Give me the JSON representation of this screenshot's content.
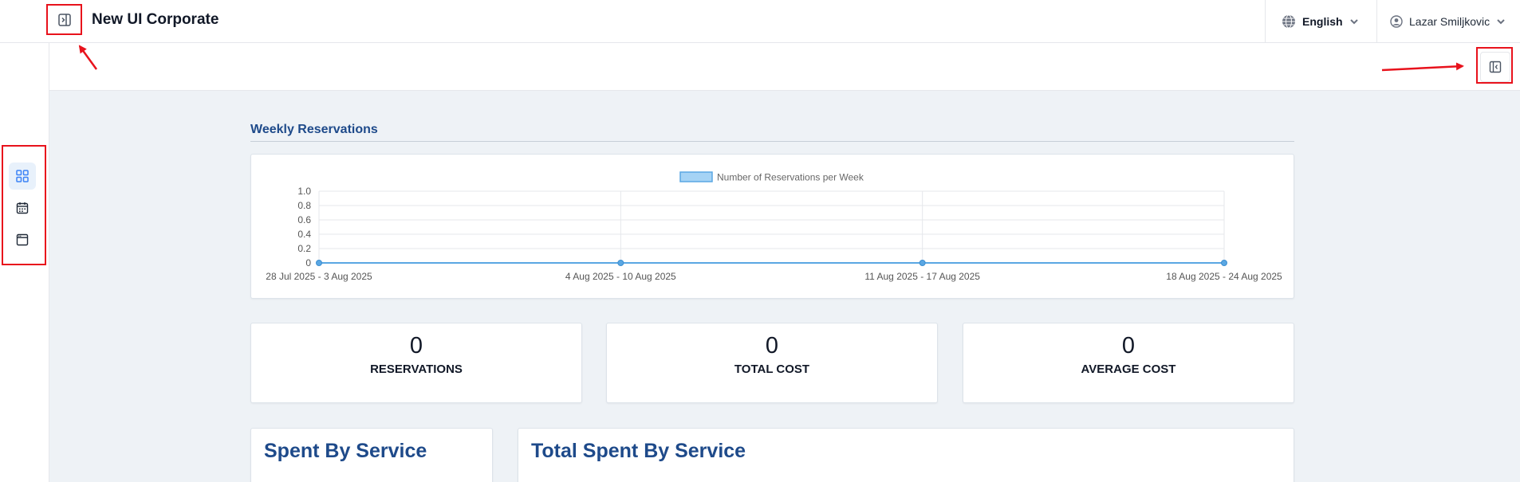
{
  "header": {
    "title": "New UI Corporate",
    "language": "English",
    "user_name": "Lazar Smiljkovic"
  },
  "sidebar": {
    "items": [
      {
        "icon": "dashboard-grid-icon",
        "active": true
      },
      {
        "icon": "calendar-icon",
        "active": false
      },
      {
        "icon": "browser-window-icon",
        "active": false
      }
    ]
  },
  "main": {
    "section_title": "Weekly Reservations",
    "stats": [
      {
        "value": "0",
        "label": "RESERVATIONS"
      },
      {
        "value": "0",
        "label": "TOTAL COST"
      },
      {
        "value": "0",
        "label": "AVERAGE COST"
      }
    ],
    "bottom_cards": [
      {
        "title": "Spent By Service"
      },
      {
        "title": "Total Spent By Service"
      }
    ]
  },
  "colors": {
    "accent": "#1e4a8a",
    "series": "#5aa7e3",
    "annotation": "#e8121c"
  },
  "chart_data": {
    "type": "line",
    "categories": [
      "28 Jul 2025 - 3 Aug 2025",
      "4 Aug 2025 - 10 Aug 2025",
      "11 Aug 2025 - 17 Aug 2025",
      "18 Aug 2025 - 24 Aug 2025"
    ],
    "series": [
      {
        "name": "Number of Reservations per Week",
        "values": [
          0,
          0,
          0,
          0
        ]
      }
    ],
    "ylim": [
      0,
      1
    ],
    "yticks": [
      "1.0",
      "0.8",
      "0.6",
      "0.4",
      "0.2",
      "0"
    ],
    "legend": "top-center",
    "grid": true
  }
}
